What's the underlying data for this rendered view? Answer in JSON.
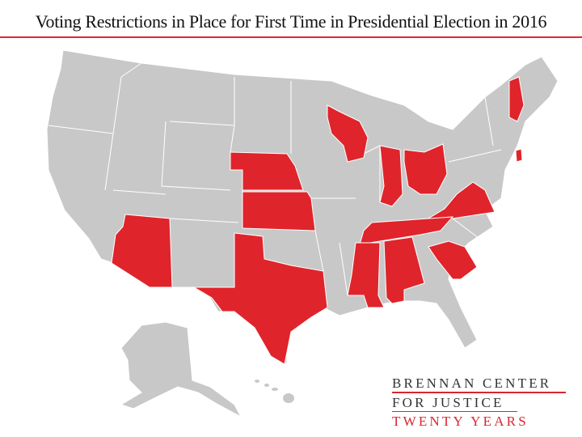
{
  "title": "Voting Restrictions in Place for First Time in Presidential Election in 2016",
  "colors": {
    "restricted": "#e0242b",
    "other": "#c8c8c8",
    "border": "#ffffff",
    "accent": "#e8262d"
  },
  "map": {
    "highlighted_states": [
      "Arizona",
      "Texas",
      "Nebraska",
      "Kansas",
      "Wisconsin",
      "Indiana",
      "Ohio",
      "Virginia",
      "Tennessee",
      "Mississippi",
      "Alabama",
      "South Carolina",
      "New Hampshire",
      "Rhode Island"
    ]
  },
  "logo": {
    "line1": "BRENNAN CENTER",
    "line2": "FOR JUSTICE",
    "line3": "TWENTY YEARS"
  }
}
